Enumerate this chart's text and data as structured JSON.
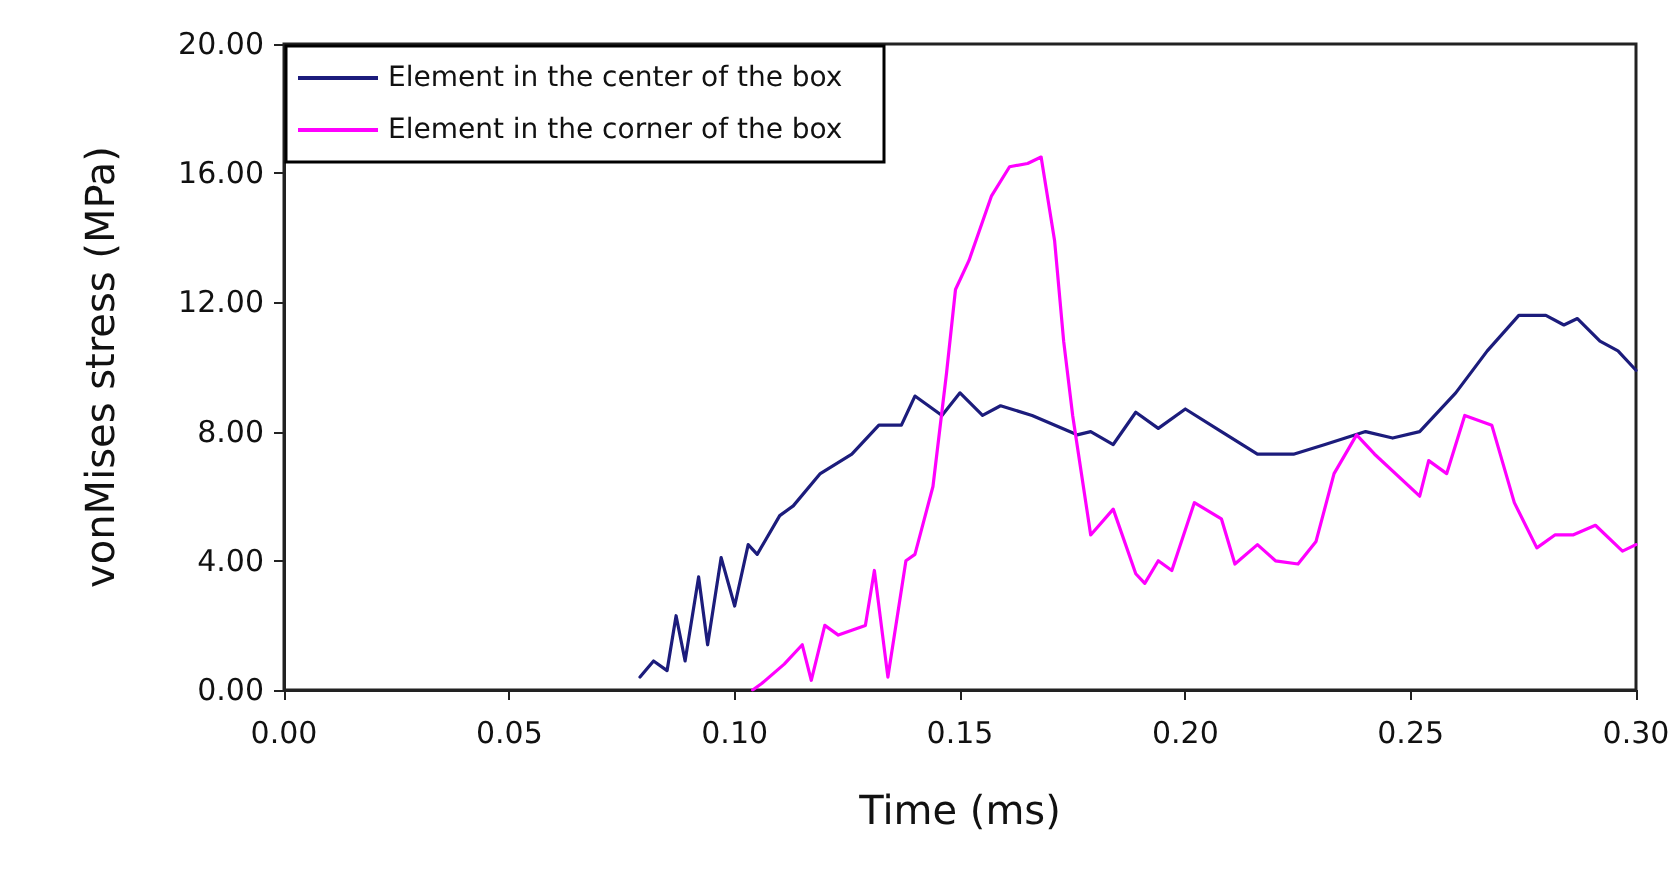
{
  "chart_data": {
    "type": "line",
    "xlabel": "Time (ms)",
    "ylabel": "vonMises stress (MPa)",
    "xlim": [
      0,
      0.3
    ],
    "ylim": [
      0,
      20
    ],
    "xticks": [
      {
        "value": 0,
        "label": "0.00"
      },
      {
        "value": 0.05,
        "label": "0.05"
      },
      {
        "value": 0.1,
        "label": "0.10"
      },
      {
        "value": 0.15,
        "label": "0.15"
      },
      {
        "value": 0.2,
        "label": "0.20"
      },
      {
        "value": 0.25,
        "label": "0.25"
      },
      {
        "value": 0.3,
        "label": "0.30"
      }
    ],
    "yticks": [
      {
        "value": 0,
        "label": "0.00"
      },
      {
        "value": 4,
        "label": "4.00"
      },
      {
        "value": 8,
        "label": "8.00"
      },
      {
        "value": 12,
        "label": "12.00"
      },
      {
        "value": 16,
        "label": "16.00"
      },
      {
        "value": 20,
        "label": "20.00"
      }
    ],
    "grid": false,
    "legend": "top left",
    "marker": "none",
    "line_style": "solid",
    "series": [
      {
        "name": "Element in the center of the box",
        "color": "#1c1c7c",
        "x": [
          0.079,
          0.082,
          0.085,
          0.087,
          0.089,
          0.092,
          0.094,
          0.097,
          0.1,
          0.103,
          0.105,
          0.11,
          0.113,
          0.119,
          0.126,
          0.132,
          0.137,
          0.14,
          0.146,
          0.15,
          0.155,
          0.159,
          0.166,
          0.176,
          0.179,
          0.184,
          0.189,
          0.194,
          0.2,
          0.208,
          0.216,
          0.224,
          0.231,
          0.24,
          0.246,
          0.252,
          0.26,
          0.267,
          0.274,
          0.28,
          0.284,
          0.287,
          0.292,
          0.296,
          0.3
        ],
        "values": [
          0.4,
          0.9,
          0.6,
          2.3,
          0.9,
          3.5,
          1.4,
          4.1,
          2.6,
          4.5,
          4.2,
          5.4,
          5.7,
          6.7,
          7.3,
          8.2,
          8.2,
          9.1,
          8.5,
          9.2,
          8.5,
          8.8,
          8.5,
          7.9,
          8.0,
          7.6,
          8.6,
          8.1,
          8.7,
          8.0,
          7.3,
          7.3,
          7.6,
          8.0,
          7.8,
          8.0,
          9.2,
          10.5,
          11.6,
          11.6,
          11.3,
          11.5,
          10.8,
          10.5,
          9.9
        ]
      },
      {
        "name": "Element in the corner of the box",
        "color": "#ff00ff",
        "x": [
          0.104,
          0.106,
          0.111,
          0.115,
          0.117,
          0.12,
          0.123,
          0.129,
          0.131,
          0.134,
          0.138,
          0.14,
          0.144,
          0.147,
          0.149,
          0.152,
          0.157,
          0.161,
          0.165,
          0.168,
          0.171,
          0.173,
          0.175,
          0.179,
          0.184,
          0.189,
          0.191,
          0.194,
          0.197,
          0.202,
          0.208,
          0.211,
          0.216,
          0.22,
          0.225,
          0.229,
          0.233,
          0.238,
          0.242,
          0.252,
          0.254,
          0.258,
          0.262,
          0.268,
          0.273,
          0.278,
          0.282,
          0.286,
          0.291,
          0.297,
          0.3
        ],
        "values": [
          0,
          0.2,
          0.8,
          1.4,
          0.3,
          2.0,
          1.7,
          2.0,
          3.7,
          0.4,
          4.0,
          4.2,
          6.3,
          9.8,
          12.4,
          13.3,
          15.3,
          16.2,
          16.3,
          16.5,
          13.9,
          10.8,
          8.5,
          4.8,
          5.6,
          3.6,
          3.3,
          4.0,
          3.7,
          5.8,
          5.3,
          3.9,
          4.5,
          4.0,
          3.9,
          4.6,
          6.7,
          7.9,
          7.3,
          6.0,
          7.1,
          6.7,
          8.5,
          8.2,
          5.8,
          4.4,
          4.8,
          4.8,
          5.1,
          4.3,
          4.5
        ]
      }
    ]
  }
}
